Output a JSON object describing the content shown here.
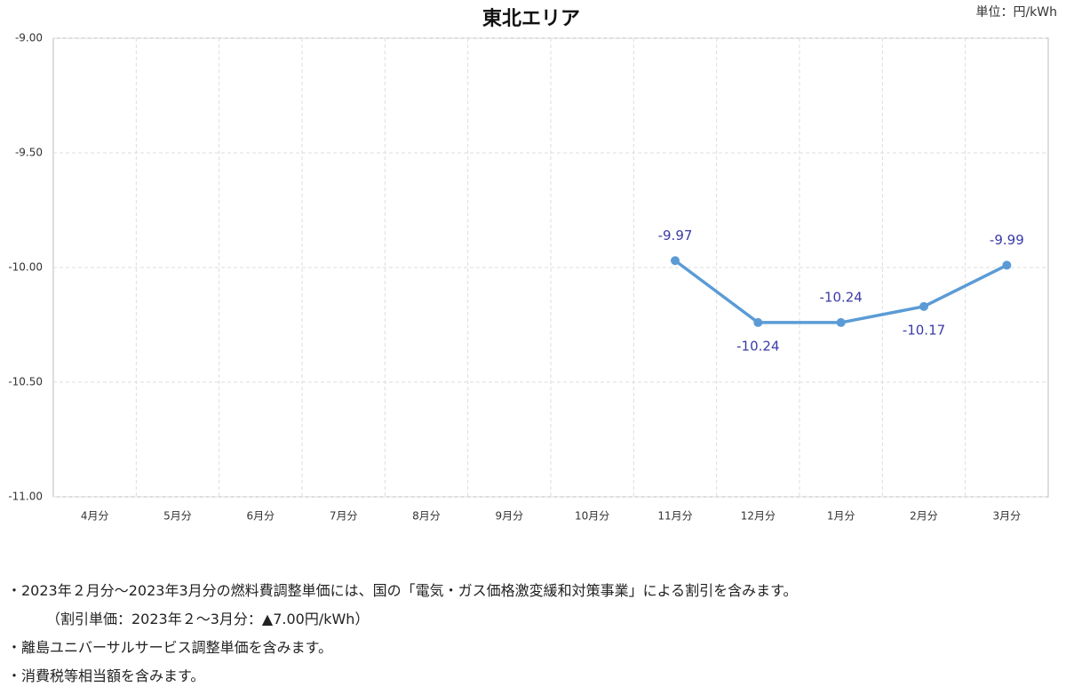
{
  "chart_data": {
    "type": "line",
    "title": "東北エリア",
    "unit_label": "単位：円/kWh",
    "categories": [
      "4月分",
      "5月分",
      "6月分",
      "7月分",
      "8月分",
      "9月分",
      "10月分",
      "11月分",
      "12月分",
      "1月分",
      "2月分",
      "3月分"
    ],
    "series": [
      {
        "name": "東北エリア",
        "color": "#5b9bd5",
        "values": [
          null,
          null,
          null,
          null,
          null,
          null,
          null,
          -9.97,
          -10.24,
          -10.24,
          -10.17,
          -9.99
        ]
      }
    ],
    "ylim": [
      -11,
      -9
    ],
    "yticks": [
      {
        "value": -11,
        "label": "-11.00"
      },
      {
        "value": -10.5,
        "label": "-10.50"
      },
      {
        "value": -10,
        "label": "-10.00"
      },
      {
        "value": -9.5,
        "label": "-9.50"
      },
      {
        "value": -9,
        "label": "-9.00"
      }
    ],
    "grid": true,
    "label_color": "#3b3ba8"
  },
  "notes": [
    "・2023年２月分～2023年3月分の燃料費調整単価には、国の「電気・ガス価格激変緩和対策事業」による割引を含みます。",
    "（割引単価：2023年２～3月分：▲7.00円/kWh）",
    "・離島ユニバーサルサービス調整単価を含みます。",
    "・消費税等相当額を含みます。"
  ]
}
